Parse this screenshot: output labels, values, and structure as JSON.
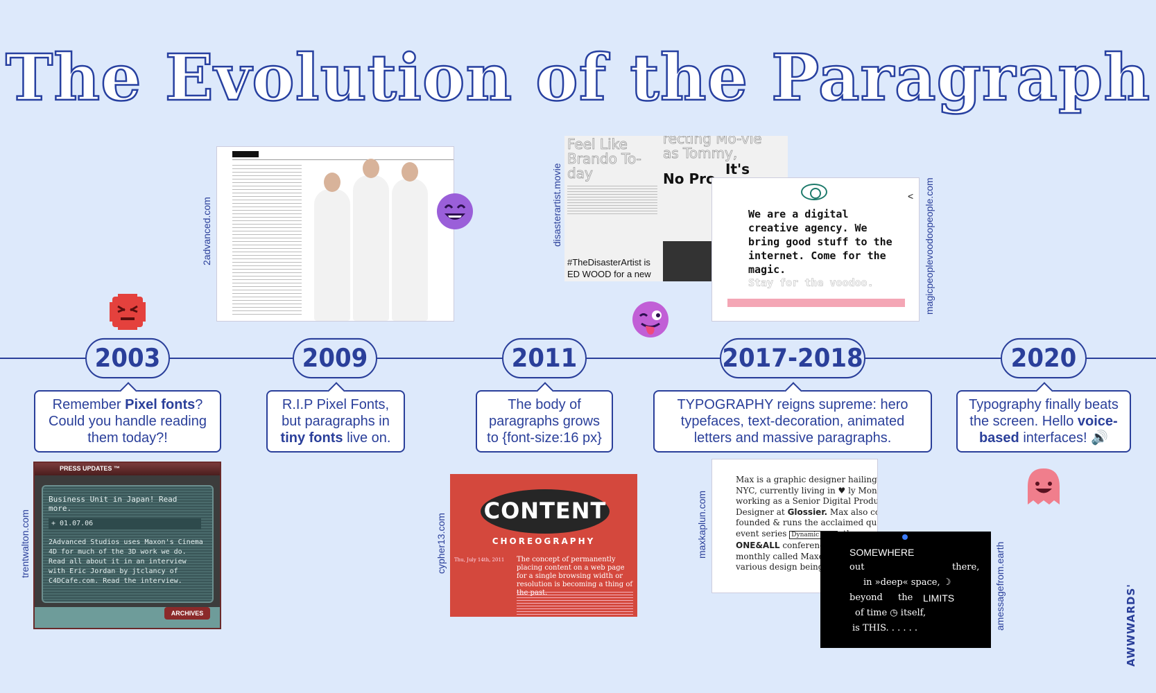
{
  "title": "The Evolution of the Paragraph",
  "timeline": [
    {
      "year": "2003",
      "desc_pre": "Remember ",
      "desc_bold": "Pixel fonts",
      "desc_post": "? Could you handle reading them today?!"
    },
    {
      "year": "2009",
      "desc_pre": "R.I.P Pixel Fonts, but paragraphs in ",
      "desc_bold": "tiny fonts",
      "desc_post": " live on."
    },
    {
      "year": "2011",
      "desc_pre": "The body of paragraphs grows to {font-size:16 px}",
      "desc_bold": "",
      "desc_post": ""
    },
    {
      "year": "2017-2018",
      "desc_pre": "TYPOGRAPHY reigns supreme: hero typefaces, text-decoration, animated letters and massive paragraphs.",
      "desc_bold": "",
      "desc_post": ""
    },
    {
      "year": "2020",
      "desc_pre": "Typography finally beats the screen. Hello ",
      "desc_bold": "voice-based",
      "desc_post": " interfaces! 🔊"
    }
  ],
  "sites": {
    "s2advanced": "2advanced.com",
    "disaster": "disasterartist.movie",
    "voodoo": "magicpeoplevoodoopeople.com",
    "trent": "trentwalton.com",
    "cypher": "cypher13.com",
    "max": "maxkaplun.com",
    "earth": "amessagefrom.earth"
  },
  "shot_disaster": {
    "big_a": "Feel Like Brando To-day",
    "big_b": "recting Mo-vie as Tommy,",
    "its": "It's",
    "nopro": "No Pro",
    "hashtag": "#TheDisasterArtist is ED WOOD for a new"
  },
  "shot_voodoo": {
    "para": "We are a digital creative agency. We bring good stuff to the internet. Come for the magic.",
    "fade": "Stay for the voodoo."
  },
  "shot_trent": {
    "header": "PRESS UPDATES ™",
    "line1": "Business Unit in Japan! Read more.",
    "date": "+ 01.07.06",
    "body": "2Advanced Studios uses Maxon's Cinema 4D for much of the 3D work we do. Read all about it in an interview with Eric Jordan by jtclancy of C4DCafe.com. Read the interview.",
    "archives": "ARCHIVES"
  },
  "shot_cypher": {
    "content": "CONTENT",
    "choreo": "CHOREOGRAPHY",
    "meta": "Thu, July 14th, 2011",
    "para": "The concept of permanently placing content on a web page for a single browsing width or resolution is becoming a thing of the past."
  },
  "shot_max": {
    "p1": "Max is a graphic designer hailing from NYC, currently living in ♥ ly Montréal, working as a Senior Digital Product Designer at ",
    "glossier": "Glossier.",
    "p2": " Max also co-founded & runs the acclaimed quarterly event series ",
    "dynamic": "Dynamic MTL",
    "p3": ", the annual ",
    "oneall": "ONE&ALL",
    "p4": " conference. He also DJs a monthly called Maxed Out. received various design being named an"
  },
  "shot_earth": {
    "l1": "SOMEWHERE",
    "l2a": "out",
    "l2b": "there,",
    "l3": "in »deep« space, ☽",
    "l4a": "beyond",
    "l4b": "the",
    "l4c": "LIMITS",
    "l5": "of time ◷ itself,",
    "l6": "is THIS. . . . . ."
  },
  "brand": "AWWWARDS'",
  "colors": {
    "accent": "#2a3f9a",
    "background": "#dde9fb"
  }
}
